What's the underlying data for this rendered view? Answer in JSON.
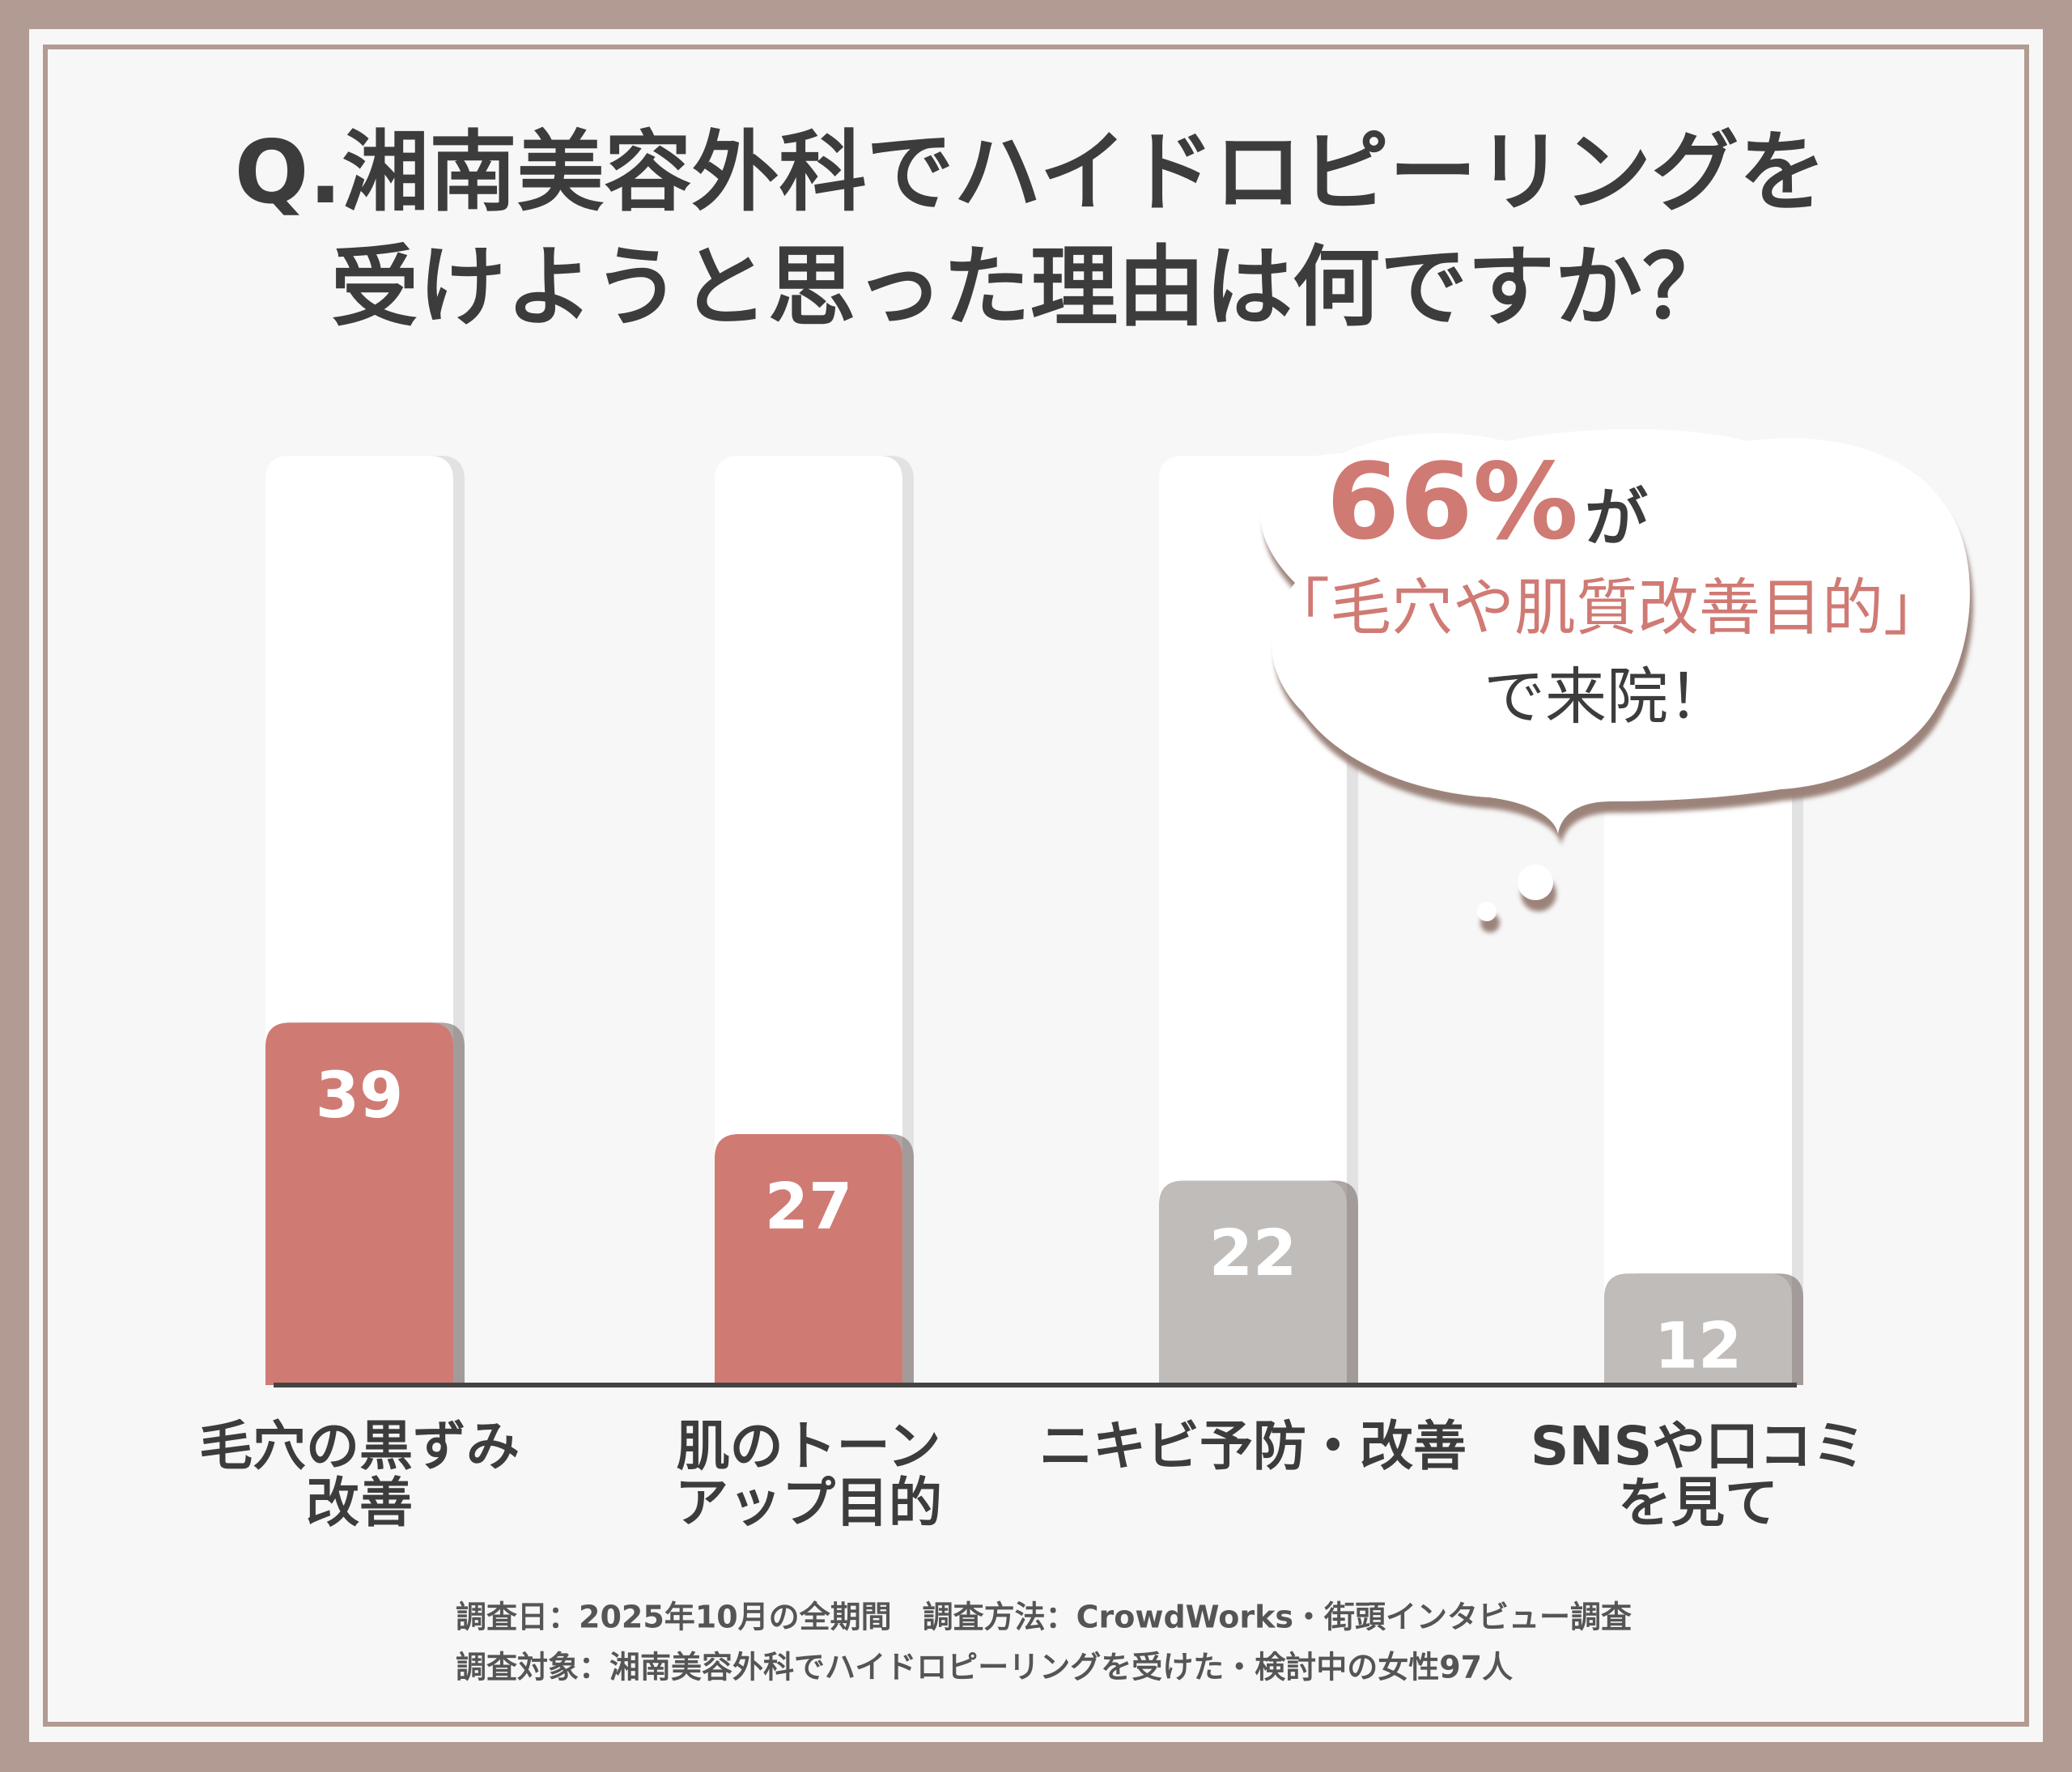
{
  "chart_data": {
    "type": "bar",
    "title": [
      "Q.湘南美容外科でハイドロピーリングを",
      "受けようと思った理由は何ですか？"
    ],
    "categories": [
      [
        "毛穴の黒ずみ",
        "改善"
      ],
      [
        "肌のトーン",
        "アップ目的"
      ],
      [
        "ニキビ予防・改善"
      ],
      [
        "SNSや口コミ",
        "を見て"
      ]
    ],
    "values": [
      39,
      27,
      22,
      12
    ],
    "colors": [
      "#d07a74",
      "#d07a74",
      "#c0bcba",
      "#c0bcba"
    ],
    "ylim": [
      0,
      100
    ],
    "annotation": {
      "highlight": "66%",
      "highlight_suffix": "が",
      "line2": "「毛穴や肌質改善目的」",
      "line3": "で来院！"
    },
    "footnotes": [
      "調査日：2025年10月の全期間　調査方法：CrowdWorks・街頭インタビュー調査",
      "調査対象：湘南美容外科でハイドロピーリングを受けた・検討中の女性97人"
    ]
  }
}
